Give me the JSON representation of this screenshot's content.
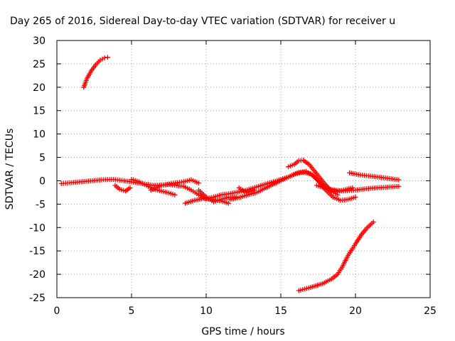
{
  "chart_data": {
    "type": "scatter",
    "title": "Day 265 of 2016, Sidereal Day-to-day VTEC variation (SDTVAR) for receiver u",
    "xlabel": "GPS time / hours",
    "ylabel": "SDTVAR / TECUs",
    "xlim": [
      0,
      25
    ],
    "ylim": [
      -25,
      30
    ],
    "xticks": [
      "0",
      "5",
      "10",
      "15",
      "20",
      "25"
    ],
    "yticks": [
      "-25",
      "-20",
      "-15",
      "-10",
      "-5",
      "0",
      "5",
      "10",
      "15",
      "20",
      "25",
      "30"
    ],
    "grid": true,
    "marker_color": "#ff0000",
    "series": [
      {
        "x": [
          1.8,
          2.0,
          2.3,
          2.6,
          2.9,
          3.2,
          3.4
        ],
        "y": [
          20.0,
          21.8,
          23.5,
          24.8,
          25.8,
          26.3,
          26.4
        ]
      },
      {
        "x": [
          0.3,
          1.0,
          2.0,
          3.0,
          3.8,
          4.5,
          5.5,
          6.5,
          7.5,
          8.5,
          9.0,
          9.5,
          10.0,
          10.5,
          11.0,
          11.5,
          12.5,
          13.5,
          14.5,
          15.5,
          16.2,
          16.7,
          17.2,
          17.8,
          18.3,
          18.8,
          19.2,
          19.8
        ],
        "y": [
          -0.6,
          -0.4,
          -0.1,
          0.2,
          0.3,
          0.0,
          -0.5,
          -1.0,
          -0.8,
          -1.2,
          -2.0,
          -3.0,
          -3.8,
          -3.5,
          -3.0,
          -2.8,
          -2.2,
          -1.2,
          -0.2,
          0.8,
          1.8,
          2.0,
          1.0,
          -1.0,
          -2.0,
          -2.3,
          -2.0,
          -1.5
        ]
      },
      {
        "x": [
          3.9,
          4.2,
          4.6,
          4.9
        ],
        "y": [
          -1.0,
          -1.8,
          -2.2,
          -1.5
        ]
      },
      {
        "x": [
          5.0,
          5.5,
          6.0,
          6.5,
          7.0,
          7.5,
          7.9
        ],
        "y": [
          0.3,
          -0.2,
          -1.0,
          -1.8,
          -2.2,
          -2.6,
          -3.0
        ]
      },
      {
        "x": [
          6.3,
          7.0,
          7.8,
          8.5,
          9.0,
          9.5
        ],
        "y": [
          -2.0,
          -1.0,
          -0.5,
          -0.2,
          0.2,
          -0.5
        ]
      },
      {
        "x": [
          8.6,
          9.2,
          9.8,
          10.4,
          11.0,
          11.5
        ],
        "y": [
          -4.8,
          -4.2,
          -3.8,
          -4.0,
          -4.3,
          -4.8
        ]
      },
      {
        "x": [
          9.5,
          10.0,
          10.5,
          11.0,
          11.5,
          12.0
        ],
        "y": [
          -2.0,
          -3.5,
          -4.5,
          -4.0,
          -3.5,
          -3.5
        ]
      },
      {
        "x": [
          11.6,
          12.2,
          12.8,
          13.4,
          14.0,
          14.8,
          15.5,
          16.0,
          16.5,
          17.0,
          17.5,
          18.0,
          18.5,
          19.0,
          19.5,
          20.0
        ],
        "y": [
          -4.0,
          -3.6,
          -3.0,
          -2.5,
          -1.5,
          -0.3,
          0.8,
          1.5,
          1.8,
          1.5,
          0.0,
          -2.0,
          -3.5,
          -4.2,
          -4.0,
          -3.5
        ]
      },
      {
        "x": [
          12.2,
          12.7,
          13.2
        ],
        "y": [
          -1.5,
          -2.5,
          -2.0
        ]
      },
      {
        "x": [
          15.5,
          15.9,
          16.2,
          16.5,
          16.9,
          17.4,
          17.9,
          18.4,
          18.8
        ],
        "y": [
          3.0,
          3.5,
          4.3,
          4.4,
          3.5,
          1.5,
          -0.5,
          -2.2,
          -3.0
        ]
      },
      {
        "x": [
          17.4,
          18.0,
          18.6,
          19.2,
          20.0,
          21.0,
          22.0,
          22.9
        ],
        "y": [
          -1.0,
          -1.6,
          -2.0,
          -2.2,
          -2.0,
          -1.6,
          -1.4,
          -1.2
        ]
      },
      {
        "x": [
          19.6,
          20.2,
          21.0,
          22.0,
          22.9
        ],
        "y": [
          1.7,
          1.3,
          1.0,
          0.6,
          0.2
        ]
      },
      {
        "x": [
          16.2,
          17.0,
          17.8,
          18.4,
          18.8,
          19.1,
          19.5,
          20.0,
          20.4,
          20.8,
          21.2
        ],
        "y": [
          -23.5,
          -22.8,
          -22.0,
          -21.0,
          -20.0,
          -18.5,
          -16.0,
          -13.5,
          -11.5,
          -10.0,
          -8.8
        ]
      }
    ]
  }
}
